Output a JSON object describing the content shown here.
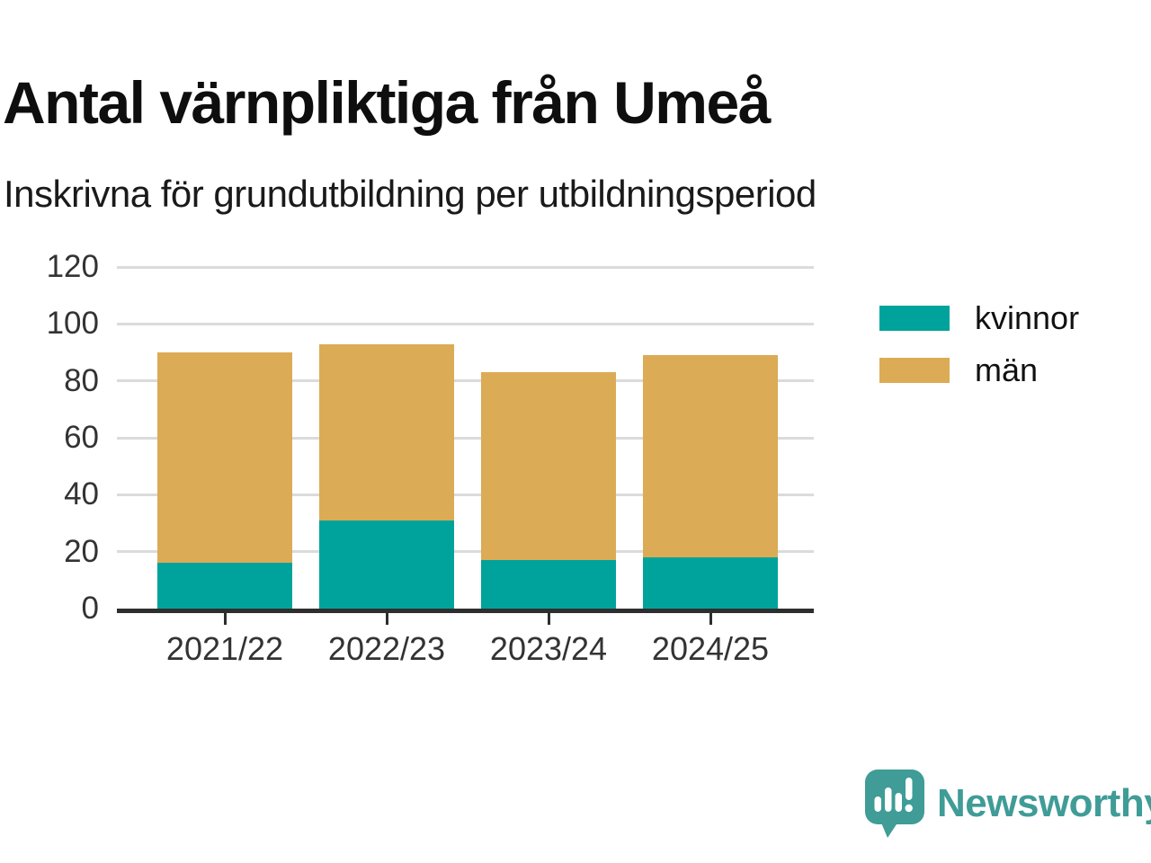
{
  "header": {
    "title": "Antal värnpliktiga från Umeå",
    "subtitle": "Inskrivna för grundutbildning per utbildningsperiod"
  },
  "chart_data": {
    "type": "bar",
    "stacked": true,
    "title": "Antal värnpliktiga från Umeå",
    "subtitle": "Inskrivna för grundutbildning per utbildningsperiod",
    "categories": [
      "2021/22",
      "2022/23",
      "2023/24",
      "2024/25"
    ],
    "series": [
      {
        "name": "kvinnor",
        "color": "#00a39b",
        "values": [
          16,
          31,
          17,
          18
        ]
      },
      {
        "name": "män",
        "color": "#dcab55",
        "values": [
          74,
          62,
          66,
          71
        ]
      }
    ],
    "stack_totals": [
      90,
      93,
      83,
      89
    ],
    "ylim": [
      0,
      120
    ],
    "yticks": [
      0,
      20,
      40,
      60,
      80,
      100,
      120
    ],
    "grid": "horizontal",
    "legend_position": "right",
    "axis_color": "#2e2e2e",
    "gridline_color": "#dbdbdb",
    "tick_label_color": "#333333"
  },
  "footer": {
    "brand": "Newsworthy",
    "brand_color": "#3f9c97",
    "logo_icon": "bar-chart-speech-bubble-icon"
  }
}
